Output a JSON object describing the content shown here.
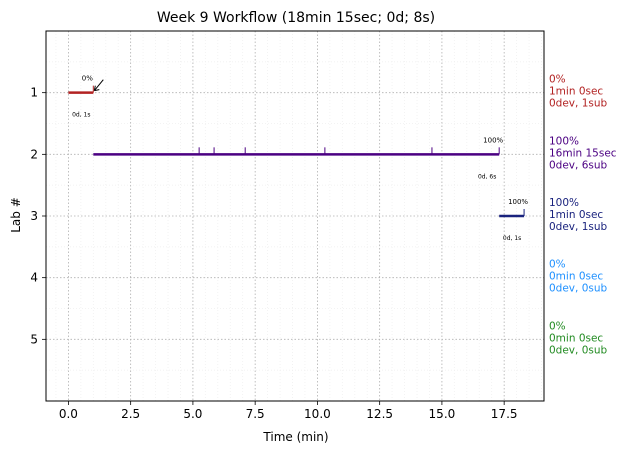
{
  "chart_data": {
    "type": "timeline",
    "title": "Week 9 Workflow (18min 15sec; 0d; 8s)",
    "xlabel": "Time (min)",
    "ylabel": "Lab #",
    "xlim": [
      -0.9,
      19.1
    ],
    "ylim": [
      6,
      0
    ],
    "xticks": [
      0.0,
      2.5,
      5.0,
      7.5,
      10.0,
      12.5,
      15.0,
      17.5
    ],
    "xtick_labels": [
      "0.0",
      "2.5",
      "5.0",
      "7.5",
      "10.0",
      "12.5",
      "15.0",
      "17.5"
    ],
    "yticks": [
      1,
      2,
      3,
      4,
      5
    ],
    "ytick_labels": [
      "1",
      "2",
      "3",
      "4",
      "5"
    ],
    "grid": true,
    "labs": [
      {
        "lab": 1,
        "start": 0.0,
        "end": 1.0,
        "color": "#b22222",
        "percent_label": "0%",
        "stats_label": "0d, 1s",
        "submissions": [
          1.0
        ],
        "arrow": true,
        "side_text": [
          "0%",
          "1min 0sec",
          "0dev, 1sub"
        ]
      },
      {
        "lab": 2,
        "start": 1.0,
        "end": 17.3,
        "color": "#4b0082",
        "percent_label": "100%",
        "stats_label": "0d, 6s",
        "submissions": [
          5.25,
          5.85,
          7.1,
          10.3,
          14.6,
          17.3
        ],
        "arrow": false,
        "side_text": [
          "100%",
          "16min 15sec",
          "0dev, 6sub"
        ]
      },
      {
        "lab": 3,
        "start": 17.3,
        "end": 18.3,
        "color": "#1a237e",
        "percent_label": "100%",
        "stats_label": "0d, 1s",
        "submissions": [
          18.3
        ],
        "arrow": false,
        "side_text": [
          "100%",
          "1min 0sec",
          "0dev, 1sub"
        ]
      },
      {
        "lab": 4,
        "start": null,
        "end": null,
        "color": "#1e90ff",
        "percent_label": "",
        "stats_label": "",
        "submissions": [],
        "arrow": false,
        "side_text": [
          "0%",
          "0min 0sec",
          "0dev, 0sub"
        ]
      },
      {
        "lab": 5,
        "start": null,
        "end": null,
        "color": "#228b22",
        "percent_label": "",
        "stats_label": "",
        "submissions": [],
        "arrow": false,
        "side_text": [
          "0%",
          "0min 0sec",
          "0dev, 0sub"
        ]
      }
    ]
  }
}
